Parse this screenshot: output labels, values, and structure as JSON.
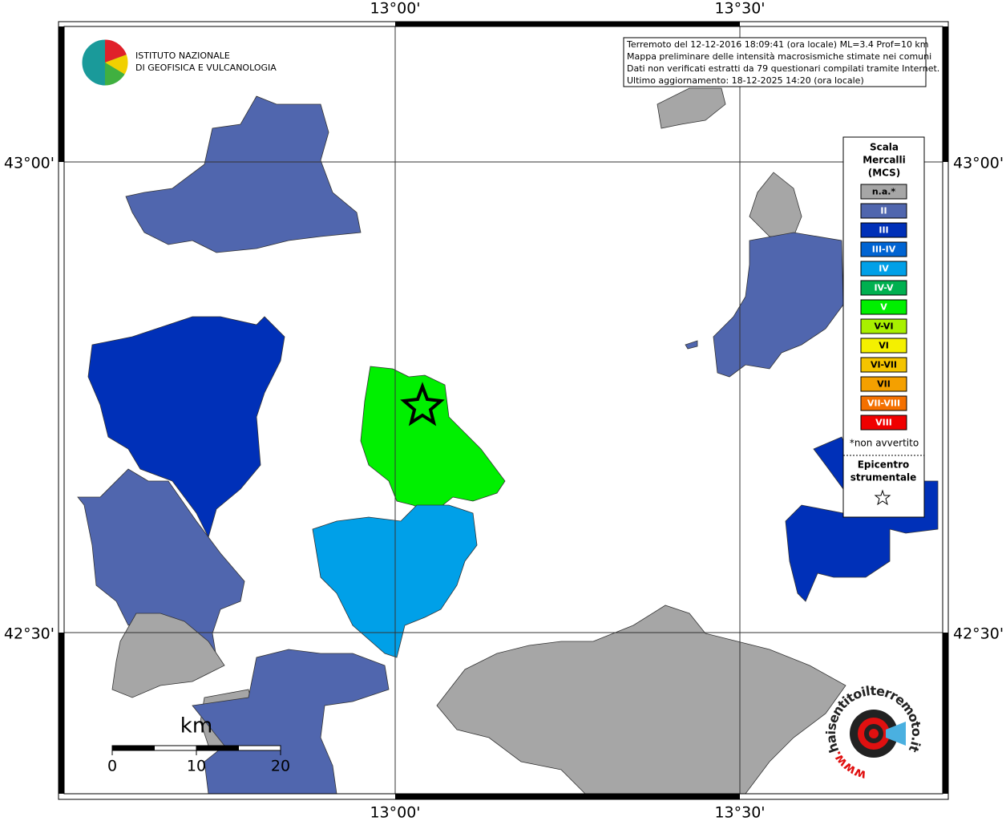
{
  "map": {
    "x_labels": [
      "13°00'",
      "13°30'"
    ],
    "y_labels": [
      "43°00'",
      "42°30'"
    ],
    "info": [
      "Terremoto del 12-12-2016 18:09:41 (ora locale) ML=3.4 Prof=10 km",
      "Mappa preliminare delle intensità macrosismiche stimate nei comuni",
      "Dati non verificati estratti da 79 questionari compilati tramite Internet.",
      "Ultimo aggiornamento: 18-12-2025 14:20 (ora locale)"
    ],
    "institute": [
      "ISTITUTO NAZIONALE",
      "DI GEOFISICA E VULCANOLOGIA"
    ],
    "legend": {
      "title": [
        "Scala",
        "Mercalli",
        "(MCS)"
      ],
      "classes": [
        {
          "label": "n.a.*",
          "color": "#a6a6a6"
        },
        {
          "label": "II",
          "color": "#5066ae"
        },
        {
          "label": "III",
          "color": "#0030b8"
        },
        {
          "label": "III-IV",
          "color": "#0064d2"
        },
        {
          "label": "IV",
          "color": "#00a0e8"
        },
        {
          "label": "IV-V",
          "color": "#00b050"
        },
        {
          "label": "V",
          "color": "#00f000"
        },
        {
          "label": "V-VI",
          "color": "#a8f000"
        },
        {
          "label": "VI",
          "color": "#f4f000"
        },
        {
          "label": "VI-VII",
          "color": "#f4c400"
        },
        {
          "label": "VII",
          "color": "#f4a000"
        },
        {
          "label": "VII-VIII",
          "color": "#f47000"
        },
        {
          "label": "VIII",
          "color": "#f00000"
        }
      ],
      "note": "*non avvertito",
      "epicenter": [
        "Epicentro",
        "strumentale"
      ]
    },
    "scale": {
      "unit": "km",
      "ticks": [
        0,
        10,
        20
      ]
    },
    "brand": {
      "prefix": "www.",
      "site": "haisentitoilterremoto.it"
    }
  }
}
